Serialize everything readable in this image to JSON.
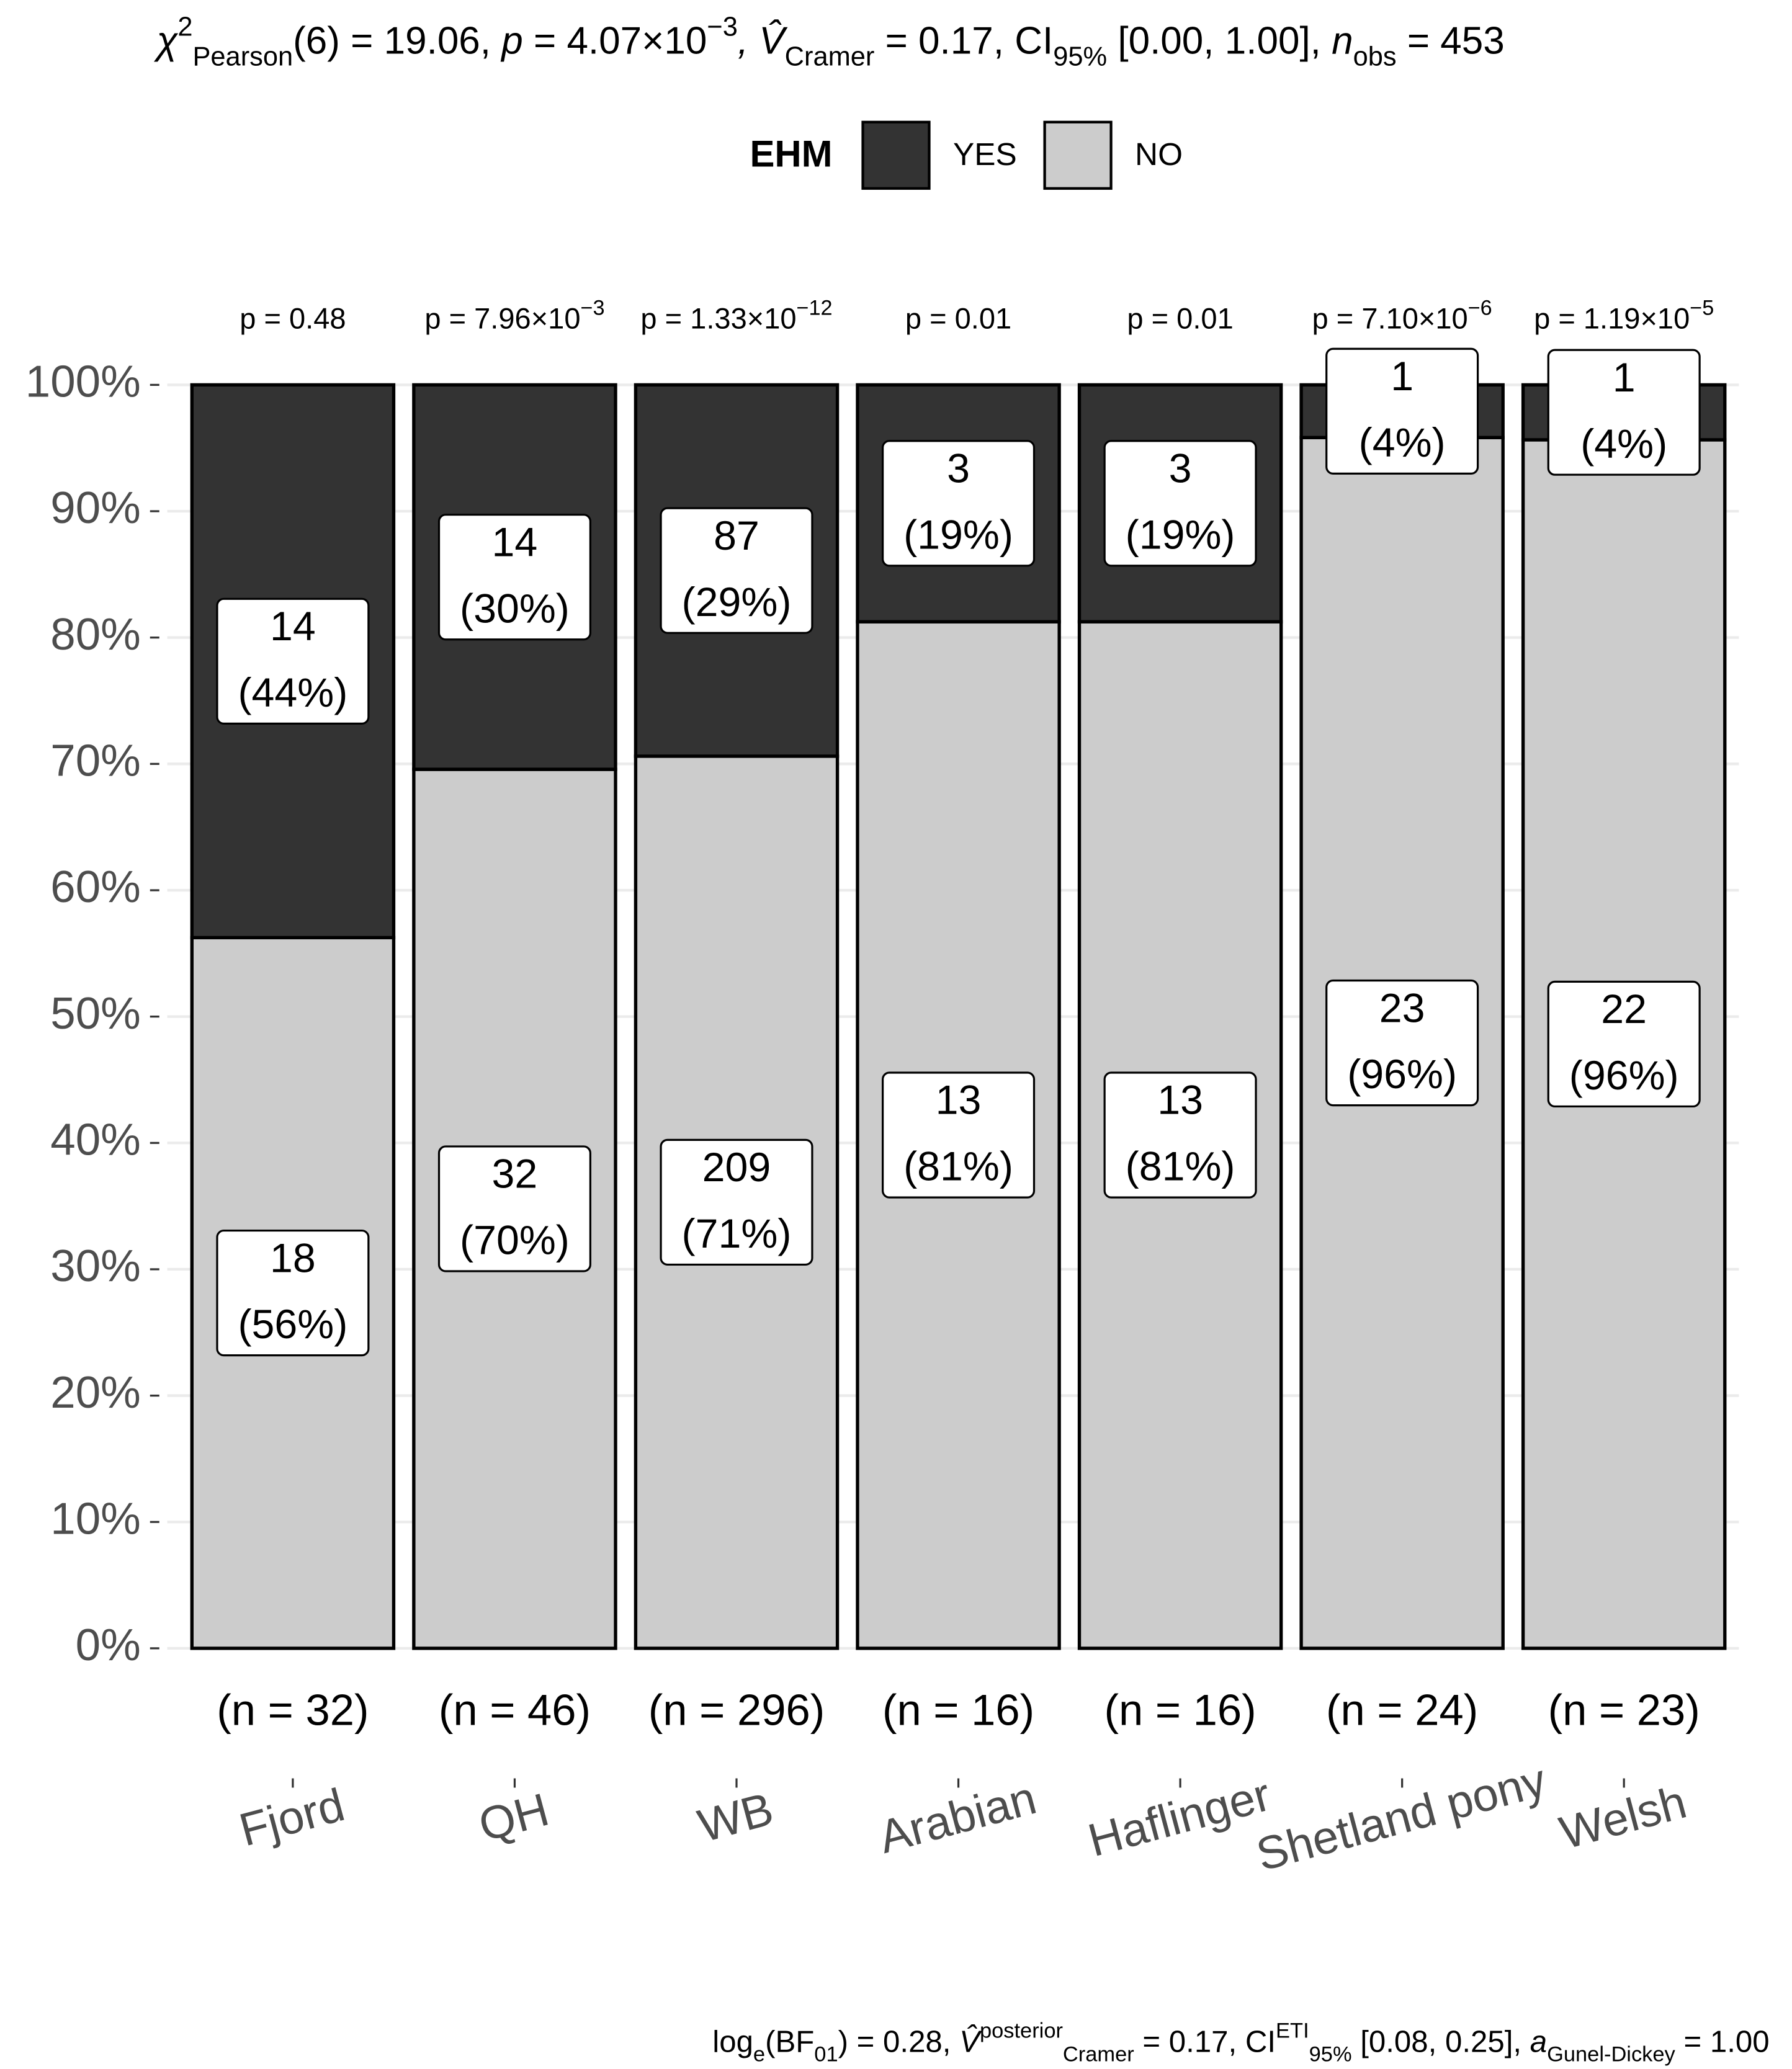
{
  "chart_data": {
    "type": "stacked_percent_bar",
    "subtitle_parts": [
      {
        "text": "χ",
        "pos": "it"
      },
      {
        "text": "2",
        "pos": "sup"
      },
      {
        "text": "Pearson",
        "pos": "sub"
      },
      {
        "text": "(6) = 19.06, "
      },
      {
        "text": "p",
        "pos": "it"
      },
      {
        "text": " = 4.07×10"
      },
      {
        "text": "−3",
        "pos": "sup"
      },
      {
        "text": ", V̂",
        "pos": "it"
      },
      {
        "text": "Cramer",
        "pos": "sub"
      },
      {
        "text": " = 0.17, CI"
      },
      {
        "text": "95%",
        "pos": "sub"
      },
      {
        "text": " [0.00, 1.00], "
      },
      {
        "text": "n",
        "pos": "it"
      },
      {
        "text": "obs",
        "pos": "sub"
      },
      {
        "text": " = 453"
      }
    ],
    "caption_parts": [
      {
        "text": "log"
      },
      {
        "text": "e",
        "pos": "sub"
      },
      {
        "text": "(BF"
      },
      {
        "text": "01",
        "pos": "sub"
      },
      {
        "text": ") = 0.28, "
      },
      {
        "text": "V̂",
        "pos": "it"
      },
      {
        "text": "posterior",
        "pos": "sup"
      },
      {
        "text": "Cramer",
        "pos": "sub"
      },
      {
        "text": " = 0.17, CI"
      },
      {
        "text": "ETI",
        "pos": "sup"
      },
      {
        "text": "95%",
        "pos": "sub"
      },
      {
        "text": " [0.08, 0.25], "
      },
      {
        "text": "a",
        "pos": "it"
      },
      {
        "text": "Gunel-Dickey",
        "pos": "sub"
      },
      {
        "text": " = 1.00"
      }
    ],
    "legend_title": "EHM",
    "categories": [
      "Fjord",
      "QH",
      "WB",
      "Arabian",
      "Haflinger",
      "Shetland pony",
      "Welsh"
    ],
    "n_labels": [
      "(n = 32)",
      "(n = 46)",
      "(n = 296)",
      "(n = 16)",
      "(n = 16)",
      "(n = 24)",
      "(n = 23)"
    ],
    "p_labels": [
      {
        "base": "p = 0.48"
      },
      {
        "base": "p = 7.96×10",
        "sup": "−3"
      },
      {
        "base": "p = 1.33×10",
        "sup": "−12"
      },
      {
        "base": "p = 0.01"
      },
      {
        "base": "p = 0.01"
      },
      {
        "base": "p = 7.10×10",
        "sup": "−6"
      },
      {
        "base": "p = 1.19×10",
        "sup": "−5"
      }
    ],
    "series": [
      {
        "name": "YES",
        "color": "#333333",
        "values": [
          43.75,
          30.43,
          29.39,
          18.75,
          18.75,
          4.17,
          4.35
        ],
        "counts": [
          14,
          14,
          87,
          3,
          3,
          1,
          1
        ],
        "value_labels": [
          "(44%)",
          "(30%)",
          "(29%)",
          "(19%)",
          "(19%)",
          "(4%)",
          "(4%)"
        ]
      },
      {
        "name": "NO",
        "color": "#cccccc",
        "values": [
          56.25,
          69.57,
          70.61,
          81.25,
          81.25,
          95.83,
          95.65
        ],
        "counts": [
          18,
          32,
          209,
          13,
          13,
          23,
          22
        ],
        "value_labels": [
          "(56%)",
          "(70%)",
          "(71%)",
          "(81%)",
          "(81%)",
          "(96%)",
          "(96%)"
        ]
      }
    ],
    "ylim": [
      0,
      100
    ],
    "yticks": [
      {
        "value": 0,
        "label": "0%"
      },
      {
        "value": 10,
        "label": "10%"
      },
      {
        "value": 20,
        "label": "20%"
      },
      {
        "value": 30,
        "label": "30%"
      },
      {
        "value": 40,
        "label": "40%"
      },
      {
        "value": 50,
        "label": "50%"
      },
      {
        "value": 60,
        "label": "60%"
      },
      {
        "value": 70,
        "label": "70%"
      },
      {
        "value": 80,
        "label": "80%"
      },
      {
        "value": 90,
        "label": "90%"
      },
      {
        "value": 100,
        "label": "100%"
      }
    ],
    "grid": true
  }
}
